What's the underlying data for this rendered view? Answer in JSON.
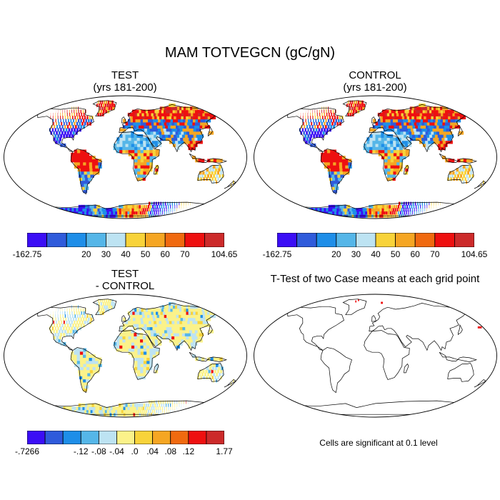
{
  "title": "MAM TOTVEGCN (gC/gN)",
  "panels": [
    {
      "id": "test",
      "title_lines": [
        "TEST",
        "(yrs 181-200)"
      ],
      "style": "field"
    },
    {
      "id": "control",
      "title_lines": [
        "CONTROL",
        "(yrs 181-200)"
      ],
      "style": "field"
    },
    {
      "id": "diff",
      "title_lines": [
        "TEST",
        "- CONTROL"
      ],
      "style": "diff"
    },
    {
      "id": "ttest",
      "title_lines": [
        "T-Test of two Case means at each grid point"
      ],
      "style": "ttest"
    }
  ],
  "colorbars": [
    {
      "id": "top-left",
      "colors": [
        "#3b0ef5",
        "#2f5bdb",
        "#1e8ee8",
        "#55b6e8",
        "#bde3f2",
        "#f8d33a",
        "#f5a623",
        "#f06a10",
        "#ee1010",
        "#cc2a2a"
      ],
      "labels": [
        "-162.75",
        "20",
        "30",
        "40",
        "50",
        "60",
        "70",
        "104.65"
      ]
    },
    {
      "id": "top-right",
      "colors": [
        "#3b0ef5",
        "#2f5bdb",
        "#1e8ee8",
        "#55b6e8",
        "#bde3f2",
        "#f8d33a",
        "#f5a623",
        "#f06a10",
        "#ee1010",
        "#cc2a2a"
      ],
      "labels": [
        "-162.75",
        "20",
        "30",
        "40",
        "50",
        "60",
        "70",
        "104.65"
      ]
    },
    {
      "id": "bottom",
      "colors": [
        "#3b0ef5",
        "#2f5bdb",
        "#1e8ee8",
        "#55b6e8",
        "#bde3f2",
        "#fbf28a",
        "#f8d33a",
        "#f5a623",
        "#f06a10",
        "#ee1010",
        "#cc2a2a"
      ],
      "labels": [
        "-.7266",
        "-.12",
        "-.08",
        "-.04",
        ".0",
        ".04",
        ".08",
        ".12",
        "1.77"
      ]
    }
  ],
  "significance_note": "Cells are significant at 0.1 level"
}
